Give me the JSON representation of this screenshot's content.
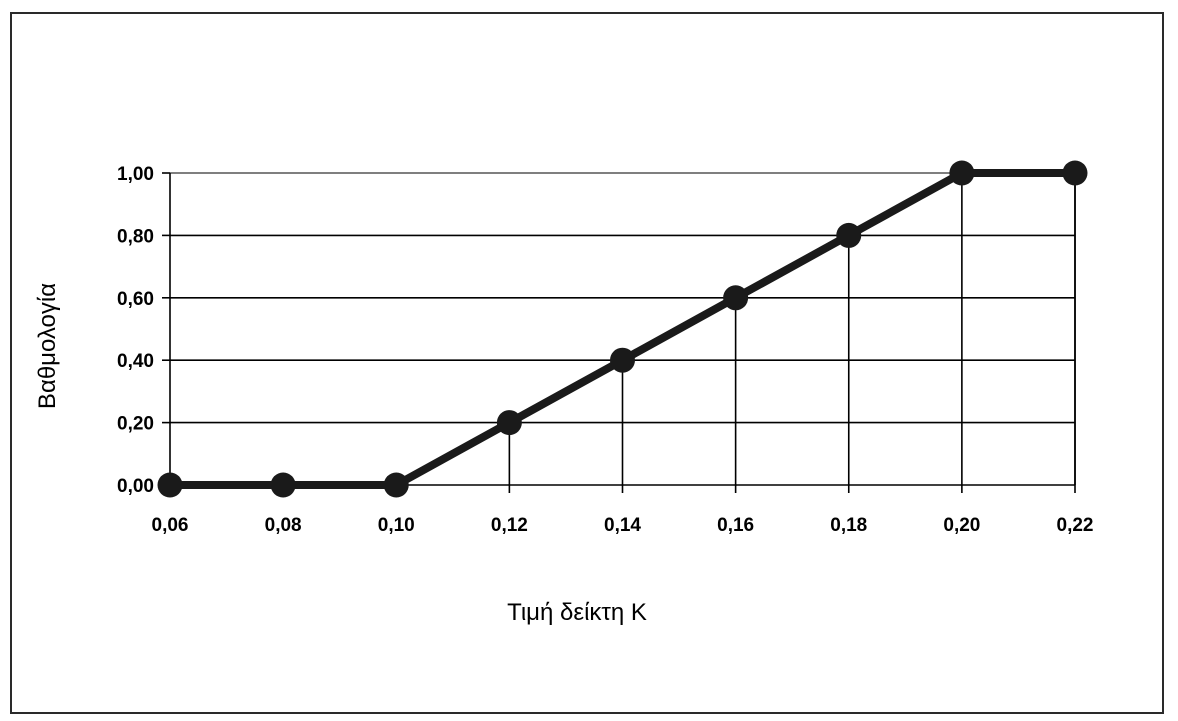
{
  "chart_data": {
    "type": "line",
    "title": "",
    "xlabel": "Τιμή δείκτη Κ",
    "ylabel": "Βαθμολογία",
    "x": [
      0.06,
      0.08,
      0.1,
      0.12,
      0.14,
      0.16,
      0.18,
      0.2,
      0.22
    ],
    "x_tick_labels": [
      "0,06",
      "0,08",
      "0,10",
      "0,12",
      "0,14",
      "0,16",
      "0,18",
      "0,20",
      "0,22"
    ],
    "series": [
      {
        "values": [
          0.0,
          0.0,
          0.0,
          0.2,
          0.4,
          0.6,
          0.8,
          1.0,
          1.0
        ]
      }
    ],
    "y_ticks": [
      0.0,
      0.2,
      0.4,
      0.6,
      0.8,
      1.0
    ],
    "y_tick_labels": [
      "0,00",
      "0,20",
      "0,40",
      "0,60",
      "0,80",
      "1,00"
    ],
    "xlim": [
      0.06,
      0.22
    ],
    "ylim": [
      0.0,
      1.0
    ],
    "grid": true,
    "legend": "none",
    "colors": {
      "line": "#1a1a1a",
      "marker": "#1a1a1a",
      "grid": "#000000",
      "frame": "#2a2a2a"
    }
  }
}
